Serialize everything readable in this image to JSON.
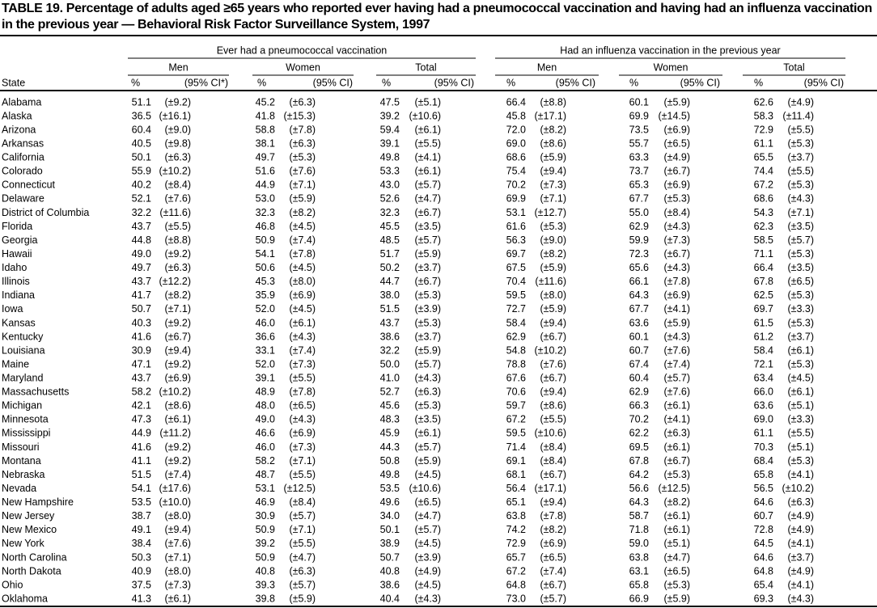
{
  "title": "TABLE 19. Percentage of adults aged ≥65 years who reported ever having had a pneumococcal vaccination and having had an influenza vaccination in the previous year — Behavioral Risk Factor Surveillance System, 1997",
  "table": {
    "group_headers": [
      "Ever had a pneumococcal vaccination",
      "Had an influenza vaccination in the previous year"
    ],
    "sub_headers": [
      "Men",
      "Women",
      "Total",
      "Men",
      "Women",
      "Total"
    ],
    "columns": [
      "State",
      "%",
      "(95% CI*)",
      "%",
      "(95% CI)",
      "%",
      "(95% CI)",
      "%",
      "(95% CI)",
      "%",
      "(95% CI)",
      "%",
      "(95% CI)"
    ],
    "rows": [
      [
        "Alabama",
        "51.1",
        "(±9.2)",
        "45.2",
        "(±6.3)",
        "47.5",
        "(±5.1)",
        "66.4",
        "(±8.8)",
        "60.1",
        "(±5.9)",
        "62.6",
        "(±4.9)"
      ],
      [
        "Alaska",
        "36.5",
        "(±16.1)",
        "41.8",
        "(±15.3)",
        "39.2",
        "(±10.6)",
        "45.8",
        "(±17.1)",
        "69.9",
        "(±14.5)",
        "58.3",
        "(±11.4)"
      ],
      [
        "Arizona",
        "60.4",
        "(±9.0)",
        "58.8",
        "(±7.8)",
        "59.4",
        "(±6.1)",
        "72.0",
        "(±8.2)",
        "73.5",
        "(±6.9)",
        "72.9",
        "(±5.5)"
      ],
      [
        "Arkansas",
        "40.5",
        "(±9.8)",
        "38.1",
        "(±6.3)",
        "39.1",
        "(±5.5)",
        "69.0",
        "(±8.6)",
        "55.7",
        "(±6.5)",
        "61.1",
        "(±5.3)"
      ],
      [
        "California",
        "50.1",
        "(±6.3)",
        "49.7",
        "(±5.3)",
        "49.8",
        "(±4.1)",
        "68.6",
        "(±5.9)",
        "63.3",
        "(±4.9)",
        "65.5",
        "(±3.7)"
      ],
      [
        "Colorado",
        "55.9",
        "(±10.2)",
        "51.6",
        "(±7.6)",
        "53.3",
        "(±6.1)",
        "75.4",
        "(±9.4)",
        "73.7",
        "(±6.7)",
        "74.4",
        "(±5.5)"
      ],
      [
        "Connecticut",
        "40.2",
        "(±8.4)",
        "44.9",
        "(±7.1)",
        "43.0",
        "(±5.7)",
        "70.2",
        "(±7.3)",
        "65.3",
        "(±6.9)",
        "67.2",
        "(±5.3)"
      ],
      [
        "Delaware",
        "52.1",
        "(±7.6)",
        "53.0",
        "(±5.9)",
        "52.6",
        "(±4.7)",
        "69.9",
        "(±7.1)",
        "67.7",
        "(±5.3)",
        "68.6",
        "(±4.3)"
      ],
      [
        "District of Columbia",
        "32.2",
        "(±11.6)",
        "32.3",
        "(±8.2)",
        "32.3",
        "(±6.7)",
        "53.1",
        "(±12.7)",
        "55.0",
        "(±8.4)",
        "54.3",
        "(±7.1)"
      ],
      [
        "Florida",
        "43.7",
        "(±5.5)",
        "46.8",
        "(±4.5)",
        "45.5",
        "(±3.5)",
        "61.6",
        "(±5.3)",
        "62.9",
        "(±4.3)",
        "62.3",
        "(±3.5)"
      ],
      [
        "Georgia",
        "44.8",
        "(±8.8)",
        "50.9",
        "(±7.4)",
        "48.5",
        "(±5.7)",
        "56.3",
        "(±9.0)",
        "59.9",
        "(±7.3)",
        "58.5",
        "(±5.7)"
      ],
      [
        "Hawaii",
        "49.0",
        "(±9.2)",
        "54.1",
        "(±7.8)",
        "51.7",
        "(±5.9)",
        "69.7",
        "(±8.2)",
        "72.3",
        "(±6.7)",
        "71.1",
        "(±5.3)"
      ],
      [
        "Idaho",
        "49.7",
        "(±6.3)",
        "50.6",
        "(±4.5)",
        "50.2",
        "(±3.7)",
        "67.5",
        "(±5.9)",
        "65.6",
        "(±4.3)",
        "66.4",
        "(±3.5)"
      ],
      [
        "Illinois",
        "43.7",
        "(±12.2)",
        "45.3",
        "(±8.0)",
        "44.7",
        "(±6.7)",
        "70.4",
        "(±11.6)",
        "66.1",
        "(±7.8)",
        "67.8",
        "(±6.5)"
      ],
      [
        "Indiana",
        "41.7",
        "(±8.2)",
        "35.9",
        "(±6.9)",
        "38.0",
        "(±5.3)",
        "59.5",
        "(±8.0)",
        "64.3",
        "(±6.9)",
        "62.5",
        "(±5.3)"
      ],
      [
        "Iowa",
        "50.7",
        "(±7.1)",
        "52.0",
        "(±4.5)",
        "51.5",
        "(±3.9)",
        "72.7",
        "(±5.9)",
        "67.7",
        "(±4.1)",
        "69.7",
        "(±3.3)"
      ],
      [
        "Kansas",
        "40.3",
        "(±9.2)",
        "46.0",
        "(±6.1)",
        "43.7",
        "(±5.3)",
        "58.4",
        "(±9.4)",
        "63.6",
        "(±5.9)",
        "61.5",
        "(±5.3)"
      ],
      [
        "Kentucky",
        "41.6",
        "(±6.7)",
        "36.6",
        "(±4.3)",
        "38.6",
        "(±3.7)",
        "62.9",
        "(±6.7)",
        "60.1",
        "(±4.3)",
        "61.2",
        "(±3.7)"
      ],
      [
        "Louisiana",
        "30.9",
        "(±9.4)",
        "33.1",
        "(±7.4)",
        "32.2",
        "(±5.9)",
        "54.8",
        "(±10.2)",
        "60.7",
        "(±7.6)",
        "58.4",
        "(±6.1)"
      ],
      [
        "Maine",
        "47.1",
        "(±9.2)",
        "52.0",
        "(±7.3)",
        "50.0",
        "(±5.7)",
        "78.8",
        "(±7.6)",
        "67.4",
        "(±7.4)",
        "72.1",
        "(±5.3)"
      ],
      [
        "Maryland",
        "43.7",
        "(±6.9)",
        "39.1",
        "(±5.5)",
        "41.0",
        "(±4.3)",
        "67.6",
        "(±6.7)",
        "60.4",
        "(±5.7)",
        "63.4",
        "(±4.5)"
      ],
      [
        "Massachusetts",
        "58.2",
        "(±10.2)",
        "48.9",
        "(±7.8)",
        "52.7",
        "(±6.3)",
        "70.6",
        "(±9.4)",
        "62.9",
        "(±7.6)",
        "66.0",
        "(±6.1)"
      ],
      [
        "Michigan",
        "42.1",
        "(±8.6)",
        "48.0",
        "(±6.5)",
        "45.6",
        "(±5.3)",
        "59.7",
        "(±8.6)",
        "66.3",
        "(±6.1)",
        "63.6",
        "(±5.1)"
      ],
      [
        "Minnesota",
        "47.3",
        "(±6.1)",
        "49.0",
        "(±4.3)",
        "48.3",
        "(±3.5)",
        "67.2",
        "(±5.5)",
        "70.2",
        "(±4.1)",
        "69.0",
        "(±3.3)"
      ],
      [
        "Mississippi",
        "44.9",
        "(±11.2)",
        "46.6",
        "(±6.9)",
        "45.9",
        "(±6.1)",
        "59.5",
        "(±10.6)",
        "62.2",
        "(±6.3)",
        "61.1",
        "(±5.5)"
      ],
      [
        "Missouri",
        "41.6",
        "(±9.2)",
        "46.0",
        "(±7.3)",
        "44.3",
        "(±5.7)",
        "71.4",
        "(±8.4)",
        "69.5",
        "(±6.1)",
        "70.3",
        "(±5.1)"
      ],
      [
        "Montana",
        "41.1",
        "(±9.2)",
        "58.2",
        "(±7.1)",
        "50.8",
        "(±5.9)",
        "69.1",
        "(±8.4)",
        "67.8",
        "(±6.7)",
        "68.4",
        "(±5.3)"
      ],
      [
        "Nebraska",
        "51.5",
        "(±7.4)",
        "48.7",
        "(±5.5)",
        "49.8",
        "(±4.5)",
        "68.1",
        "(±6.7)",
        "64.2",
        "(±5.3)",
        "65.8",
        "(±4.1)"
      ],
      [
        "Nevada",
        "54.1",
        "(±17.6)",
        "53.1",
        "(±12.5)",
        "53.5",
        "(±10.6)",
        "56.4",
        "(±17.1)",
        "56.6",
        "(±12.5)",
        "56.5",
        "(±10.2)"
      ],
      [
        "New Hampshire",
        "53.5",
        "(±10.0)",
        "46.9",
        "(±8.4)",
        "49.6",
        "(±6.5)",
        "65.1",
        "(±9.4)",
        "64.3",
        "(±8.2)",
        "64.6",
        "(±6.3)"
      ],
      [
        "New Jersey",
        "38.7",
        "(±8.0)",
        "30.9",
        "(±5.7)",
        "34.0",
        "(±4.7)",
        "63.8",
        "(±7.8)",
        "58.7",
        "(±6.1)",
        "60.7",
        "(±4.9)"
      ],
      [
        "New Mexico",
        "49.1",
        "(±9.4)",
        "50.9",
        "(±7.1)",
        "50.1",
        "(±5.7)",
        "74.2",
        "(±8.2)",
        "71.8",
        "(±6.1)",
        "72.8",
        "(±4.9)"
      ],
      [
        "New York",
        "38.4",
        "(±7.6)",
        "39.2",
        "(±5.5)",
        "38.9",
        "(±4.5)",
        "72.9",
        "(±6.9)",
        "59.0",
        "(±5.1)",
        "64.5",
        "(±4.1)"
      ],
      [
        "North Carolina",
        "50.3",
        "(±7.1)",
        "50.9",
        "(±4.7)",
        "50.7",
        "(±3.9)",
        "65.7",
        "(±6.5)",
        "63.8",
        "(±4.7)",
        "64.6",
        "(±3.7)"
      ],
      [
        "North Dakota",
        "40.9",
        "(±8.0)",
        "40.8",
        "(±6.3)",
        "40.8",
        "(±4.9)",
        "67.2",
        "(±7.4)",
        "63.1",
        "(±6.5)",
        "64.8",
        "(±4.9)"
      ],
      [
        "Ohio",
        "37.5",
        "(±7.3)",
        "39.3",
        "(±5.7)",
        "38.6",
        "(±4.5)",
        "64.8",
        "(±6.7)",
        "65.8",
        "(±5.3)",
        "65.4",
        "(±4.1)"
      ],
      [
        "Oklahoma",
        "41.3",
        "(±6.1)",
        "39.8",
        "(±5.9)",
        "40.4",
        "(±4.3)",
        "73.0",
        "(±5.7)",
        "66.9",
        "(±5.9)",
        "69.3",
        "(±4.3)"
      ]
    ]
  }
}
